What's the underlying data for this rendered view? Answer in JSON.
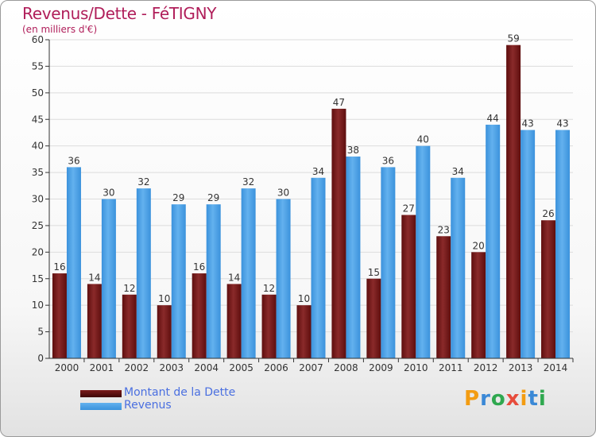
{
  "chart_data": {
    "type": "bar",
    "title": "Revenus/Dette - FéTIGNY",
    "subtitle": "(en milliers d'€)",
    "categories": [
      "2000",
      "2001",
      "2002",
      "2003",
      "2004",
      "2005",
      "2006",
      "2007",
      "2008",
      "2009",
      "2010",
      "2011",
      "2012",
      "2013",
      "2014"
    ],
    "series": [
      {
        "name": "Montant de la Dette",
        "color": "#7a1a1a",
        "values": [
          16,
          14,
          12,
          10,
          16,
          14,
          12,
          10,
          47,
          15,
          27,
          23,
          20,
          59,
          26
        ]
      },
      {
        "name": "Revenus",
        "color": "#4aa0e6",
        "values": [
          36,
          30,
          32,
          29,
          29,
          32,
          30,
          34,
          38,
          36,
          40,
          34,
          44,
          43,
          43
        ]
      }
    ],
    "yticks": [
      0,
      5,
      10,
      15,
      20,
      25,
      30,
      35,
      40,
      45,
      50,
      55,
      60
    ],
    "ylim": [
      0,
      60
    ],
    "grid": true,
    "legend": "bottom-left"
  },
  "logo": {
    "letters": [
      "P",
      "r",
      "o",
      "x",
      "i",
      "t",
      "i"
    ],
    "colors": [
      "#f39c12",
      "#3a88d6",
      "#2fa84f",
      "#e74c3c",
      "#f39c12",
      "#3a88d6",
      "#2fa84f"
    ]
  }
}
